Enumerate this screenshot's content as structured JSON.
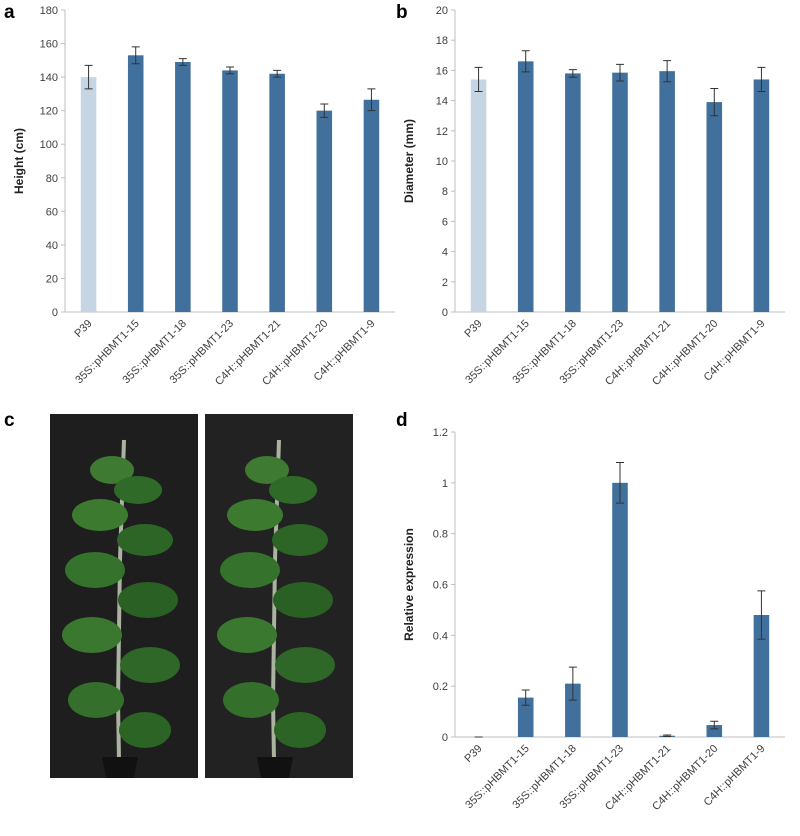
{
  "panels": [
    "a",
    "b",
    "c",
    "d"
  ],
  "chart_data": [
    {
      "type": "bar",
      "y_label": "Height (cm)",
      "categories": [
        "P39",
        "35S::pHBMT1-15",
        "35S::pHBMT1-18",
        "35S::pHBMT1-23",
        "C4H::pHBMT1-21",
        "C4H::pHBMT1-20",
        "C4H::pHBMT1-9"
      ],
      "values": [
        140,
        153,
        149,
        144,
        142,
        120,
        126.5
      ],
      "errors": [
        7,
        5,
        2,
        2,
        2,
        4,
        6.5
      ],
      "colors": [
        "#c5d5e4",
        "#41709c",
        "#41709c",
        "#41709c",
        "#41709c",
        "#41709c",
        "#41709c"
      ],
      "ylim": [
        0,
        180
      ],
      "yticks": [
        0,
        20,
        40,
        60,
        80,
        100,
        120,
        140,
        160,
        180
      ]
    },
    {
      "type": "bar",
      "y_label": "Diameter (mm)",
      "categories": [
        "P39",
        "35S::pHBMT1-15",
        "35S::pHBMT1-18",
        "35S::pHBMT1-23",
        "C4H::pHBMT1-21",
        "C4H::pHBMT1-20",
        "C4H::pHBMT1-9"
      ],
      "values": [
        15.4,
        16.6,
        15.8,
        15.85,
        15.95,
        13.9,
        15.4
      ],
      "errors": [
        0.8,
        0.7,
        0.25,
        0.55,
        0.7,
        0.9,
        0.8
      ],
      "colors": [
        "#c5d5e4",
        "#41709c",
        "#41709c",
        "#41709c",
        "#41709c",
        "#41709c",
        "#41709c"
      ],
      "ylim": [
        0,
        20
      ],
      "yticks": [
        0,
        2,
        4,
        6,
        8,
        10,
        12,
        14,
        16,
        18,
        20
      ]
    },
    {
      "type": "bar",
      "y_label": "Relative expression",
      "categories": [
        "P39",
        "35S::pHBMT1-15",
        "35S::pHBMT1-18",
        "35S::pHBMT1-23",
        "C4H::pHBMT1-21",
        "C4H::pHBMT1-20",
        "C4H::pHBMT1-9"
      ],
      "values": [
        0,
        0.155,
        0.21,
        1.0,
        0.005,
        0.047,
        0.48
      ],
      "errors": [
        0,
        0.03,
        0.065,
        0.08,
        0.003,
        0.015,
        0.095
      ],
      "colors": [
        "#41709c",
        "#41709c",
        "#41709c",
        "#41709c",
        "#41709c",
        "#41709c",
        "#41709c"
      ],
      "ylim": [
        0,
        1.2
      ],
      "yticks": [
        0,
        0.2,
        0.4,
        0.6,
        0.8,
        1,
        1.2
      ]
    }
  ]
}
